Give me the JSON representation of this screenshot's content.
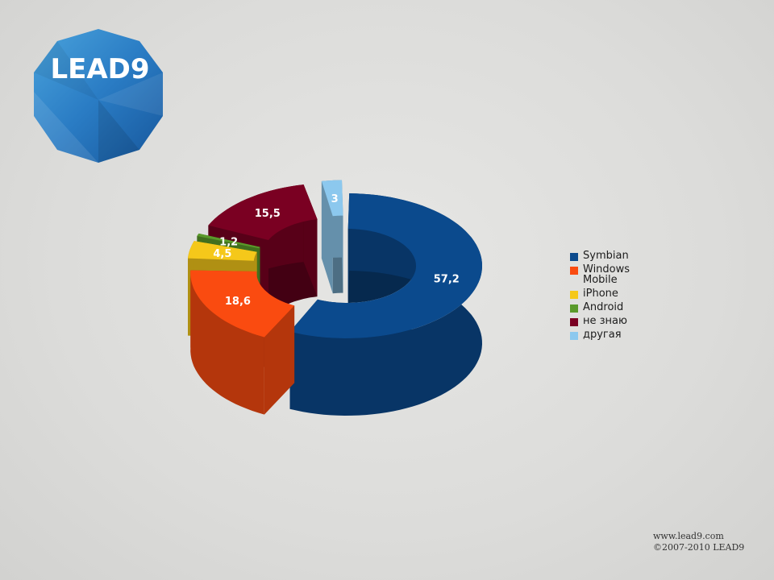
{
  "logo": {
    "text": "LEAD9",
    "colors": {
      "light": "#3b8fd1",
      "dark": "#1a5ea6"
    }
  },
  "footer": {
    "url": "www.lead9.com",
    "copyright": "©2007-2010 LEAD9"
  },
  "chart_data": {
    "type": "pie",
    "variant": "3d-donut-exploded",
    "title": "",
    "categories": [
      "Symbian",
      "Windows Mobile",
      "iPhone",
      "Android",
      "не знаю",
      "другая"
    ],
    "values": [
      57.2,
      18.6,
      4.5,
      1.2,
      15.5,
      3
    ],
    "data_labels": [
      "57,2",
      "18,6",
      "4,5",
      "1,2",
      "15,5",
      "3"
    ],
    "colors": [
      "#0b4a8d",
      "#fa4b10",
      "#f5c81a",
      "#5a9a2a",
      "#7a0022",
      "#8cc8ee"
    ],
    "legend": {
      "position": "right",
      "entries": [
        "Symbian",
        "Windows Mobile",
        "iPhone",
        "Android",
        "не знаю",
        "другая"
      ]
    }
  }
}
